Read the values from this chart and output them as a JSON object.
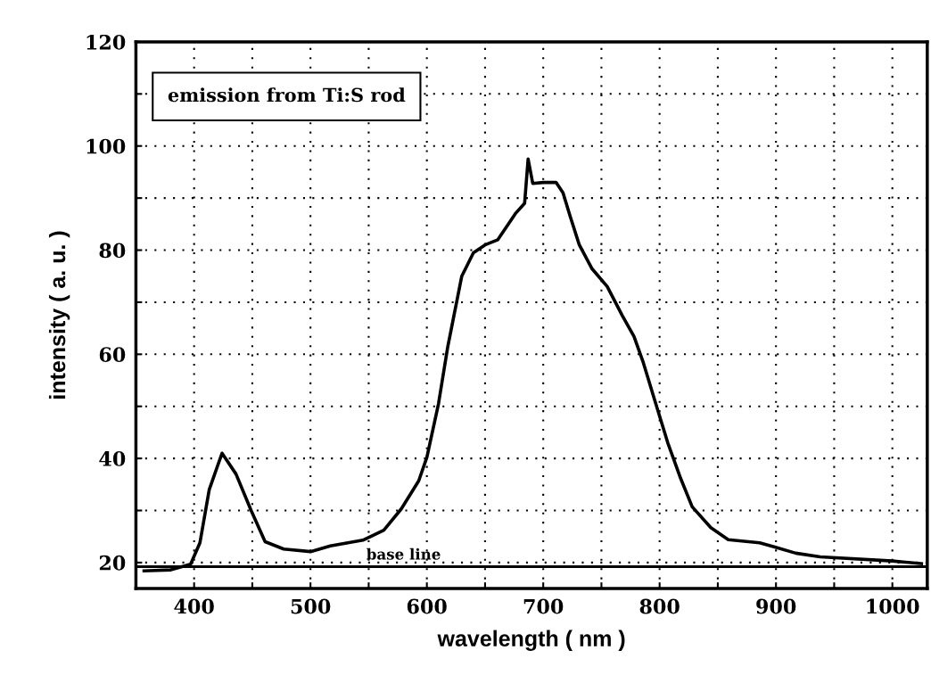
{
  "chart_data": {
    "type": "line",
    "xlabel": "wavelength ( nm )",
    "ylabel": "intensity ( a. u. )",
    "annotations": [
      "emission from Ti:S rod"
    ],
    "xlim": [
      350,
      1030
    ],
    "ylim": [
      15,
      120
    ],
    "xticks": [
      400,
      {
        "value": 450,
        "label": null
      },
      500,
      {
        "value": 550,
        "label": null
      },
      600,
      {
        "value": 650,
        "label": null
      },
      700,
      {
        "value": 750,
        "label": null
      },
      800,
      {
        "value": 850,
        "label": null
      },
      900,
      {
        "value": 950,
        "label": null
      },
      1000
    ],
    "yticks": [
      20,
      {
        "value": 30,
        "label": null
      },
      40,
      {
        "value": 50,
        "label": null
      },
      60,
      {
        "value": 70,
        "label": null
      },
      80,
      {
        "value": 90,
        "label": null
      },
      100,
      {
        "value": 110,
        "label": null
      },
      120
    ],
    "grid": true,
    "legend": false,
    "line_style": "solid",
    "marker": "none",
    "ref_lines": [
      {
        "axis": "y",
        "value": 19.2,
        "label": "base line",
        "color": "#000000",
        "line_style": "solid"
      }
    ],
    "series": [
      {
        "color": "#000000",
        "x": [
          357,
          380,
          397,
          405,
          413,
          424,
          436,
          449,
          461,
          477,
          500,
          517,
          545,
          563,
          578,
          593,
          600,
          610,
          618,
          630,
          640,
          650,
          661,
          676,
          684,
          687,
          691,
          700,
          711,
          717,
          723,
          731,
          742,
          755,
          768,
          778,
          786,
          797,
          807,
          818,
          828,
          844,
          859,
          886,
          899,
          917,
          938,
          1000,
          1025
        ],
        "values": [
          18.4,
          18.6,
          19.7,
          23.8,
          34,
          41,
          37,
          30,
          24,
          22.6,
          22.1,
          23.2,
          24.3,
          26.2,
          30.3,
          35.7,
          40.2,
          50.5,
          61.5,
          75,
          79.5,
          81,
          82,
          87,
          89,
          97.5,
          92.8,
          93,
          93,
          91,
          86.6,
          81,
          76.4,
          73,
          67.4,
          63.4,
          58.4,
          50.3,
          43,
          36.2,
          30.7,
          26.7,
          24.4,
          23.8,
          23,
          21.8,
          21.1,
          20.3,
          19.8
        ]
      }
    ]
  }
}
